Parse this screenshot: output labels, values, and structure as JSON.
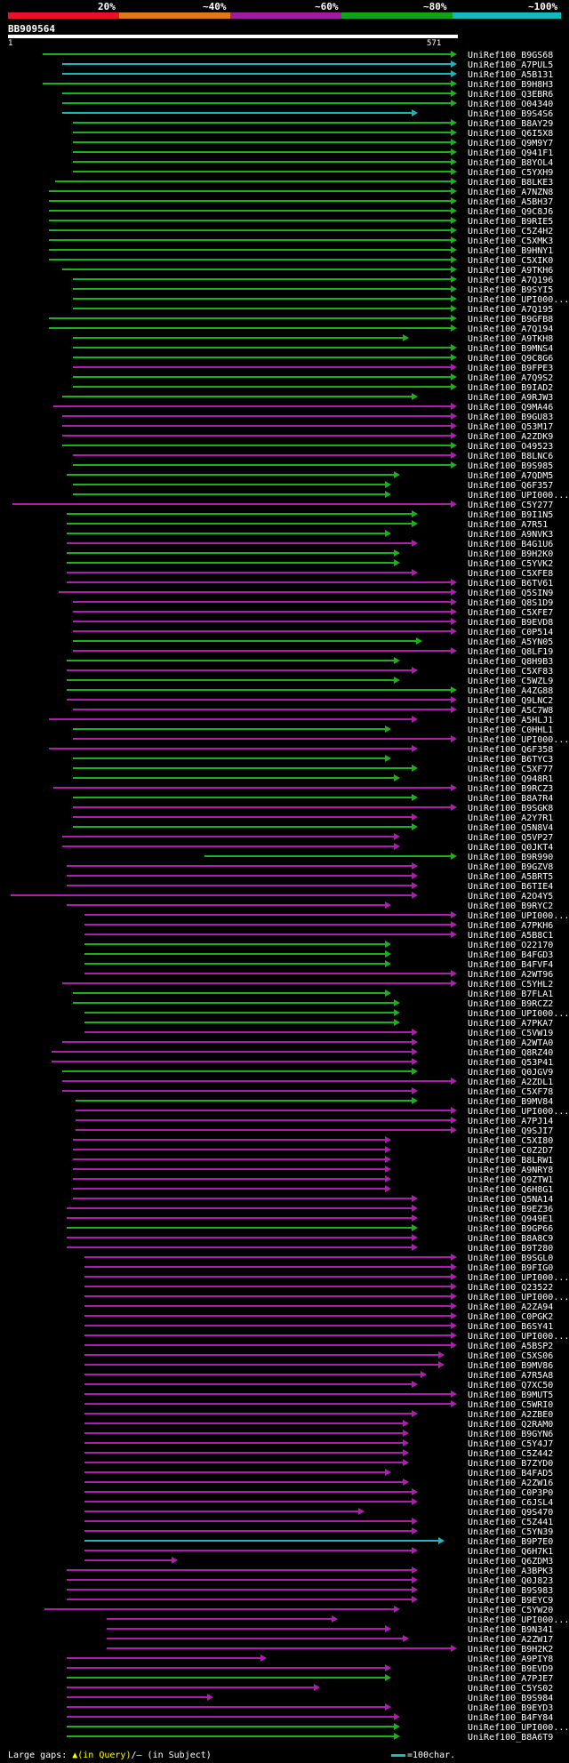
{
  "scale": {
    "labels": [
      "20%",
      "~40%",
      "~60%",
      "~80%",
      "~100%"
    ],
    "colors": [
      "#e8102a",
      "#e07818",
      "#a01c9e",
      "#16a016",
      "#16b8c0"
    ]
  },
  "query": {
    "id": "BB909564",
    "start": "1",
    "end": "571"
  },
  "hits": [
    {
      "id": "UniRef100_B9GS68",
      "c": "g"
    },
    {
      "id": "UniRef100_A7PUL5",
      "c": "c"
    },
    {
      "id": "UniRef100_A5B131",
      "c": "c"
    },
    {
      "id": "UniRef100_B9H8H3",
      "c": "g"
    },
    {
      "id": "UniRef100_Q3EBR6",
      "c": "g"
    },
    {
      "id": "UniRef100_O04340",
      "c": "g"
    },
    {
      "id": "UniRef100_B9S4S6",
      "c": "c"
    },
    {
      "id": "UniRef100_B8AY29",
      "c": "g"
    },
    {
      "id": "UniRef100_Q6I5X8",
      "c": "g"
    },
    {
      "id": "UniRef100_Q9M9Y7",
      "c": "g"
    },
    {
      "id": "UniRef100_Q941F1",
      "c": "g"
    },
    {
      "id": "UniRef100_B8YOL4",
      "c": "g"
    },
    {
      "id": "UniRef100_C5YXH9",
      "c": "g"
    },
    {
      "id": "UniRef100_B8LKE3",
      "c": "g"
    },
    {
      "id": "UniRef100_A7NZN8",
      "c": "g"
    },
    {
      "id": "UniRef100_A5BH37",
      "c": "g"
    },
    {
      "id": "UniRef100_Q9C8J6",
      "c": "g"
    },
    {
      "id": "UniRef100_B9RIE5",
      "c": "g"
    },
    {
      "id": "UniRef100_C5Z4H2",
      "c": "g"
    },
    {
      "id": "UniRef100_C5XMK3",
      "c": "g"
    },
    {
      "id": "UniRef100_B9HNY1",
      "c": "g"
    },
    {
      "id": "UniRef100_C5XIK0",
      "c": "g"
    },
    {
      "id": "UniRef100_A9TKH6",
      "c": "g"
    },
    {
      "id": "UniRef100_A7Q196",
      "c": "g"
    },
    {
      "id": "UniRef100_B9SYI5",
      "c": "g"
    },
    {
      "id": "UniRef100_UPI000...",
      "c": "g"
    },
    {
      "id": "UniRef100_A7Q195",
      "c": "g"
    },
    {
      "id": "UniRef100_B9GFB8",
      "c": "g"
    },
    {
      "id": "UniRef100_A7Q194",
      "c": "g"
    },
    {
      "id": "UniRef100_A9TKH8",
      "c": "g"
    },
    {
      "id": "UniRef100_B9MNS4",
      "c": "g"
    },
    {
      "id": "UniRef100_Q9C8G6",
      "c": "g"
    },
    {
      "id": "UniRef100_B9FPE3",
      "c": "m"
    },
    {
      "id": "UniRef100_A7Q9S2",
      "c": "g"
    },
    {
      "id": "UniRef100_B9IAD2",
      "c": "g"
    },
    {
      "id": "UniRef100_A9RJW3",
      "c": "g"
    },
    {
      "id": "UniRef100_Q9MA46",
      "c": "m"
    },
    {
      "id": "UniRef100_B9GU83",
      "c": "m"
    },
    {
      "id": "UniRef100_Q53M17",
      "c": "m"
    },
    {
      "id": "UniRef100_A2ZDK9",
      "c": "m"
    },
    {
      "id": "UniRef100_O49523",
      "c": "g"
    },
    {
      "id": "UniRef100_B8LNC6",
      "c": "m"
    },
    {
      "id": "UniRef100_B9S985",
      "c": "g"
    },
    {
      "id": "UniRef100_A7QDM5",
      "c": "g"
    },
    {
      "id": "UniRef100_Q6F357",
      "c": "g"
    },
    {
      "id": "UniRef100_UPI000...",
      "c": "g"
    },
    {
      "id": "UniRef100_C5Y277",
      "c": "m"
    },
    {
      "id": "UniRef100_B9I1N5",
      "c": "g"
    },
    {
      "id": "UniRef100_A7R51",
      "c": "g"
    },
    {
      "id": "UniRef100_A9NVK3",
      "c": "g"
    },
    {
      "id": "UniRef100_B4G1U6",
      "c": "m"
    },
    {
      "id": "UniRef100_B9H2K0",
      "c": "g"
    },
    {
      "id": "UniRef100_C5YVK2",
      "c": "g"
    },
    {
      "id": "UniRef100_C5XFE8",
      "c": "m"
    },
    {
      "id": "UniRef100_B6TV61",
      "c": "m"
    },
    {
      "id": "UniRef100_Q5SIN9",
      "c": "m"
    },
    {
      "id": "UniRef100_Q8S1D9",
      "c": "m"
    },
    {
      "id": "UniRef100_C5XFE7",
      "c": "m"
    },
    {
      "id": "UniRef100_B9EVD8",
      "c": "m"
    },
    {
      "id": "UniRef100_C0P514",
      "c": "m"
    },
    {
      "id": "UniRef100_A5YN05",
      "c": "g"
    },
    {
      "id": "UniRef100_Q8LF19",
      "c": "m"
    },
    {
      "id": "UniRef100_Q8H9B3",
      "c": "g"
    },
    {
      "id": "UniRef100_C5XF83",
      "c": "m"
    },
    {
      "id": "UniRef100_C5WZL9",
      "c": "g"
    },
    {
      "id": "UniRef100_A4ZG88",
      "c": "g"
    },
    {
      "id": "UniRef100_Q9LNC2",
      "c": "m"
    },
    {
      "id": "UniRef100_A5C7W8",
      "c": "m"
    },
    {
      "id": "UniRef100_A5HLJ1",
      "c": "m"
    },
    {
      "id": "UniRef100_C0HHL1",
      "c": "g"
    },
    {
      "id": "UniRef100_UPI000...",
      "c": "m"
    },
    {
      "id": "UniRef100_Q6F358",
      "c": "m"
    },
    {
      "id": "UniRef100_B6TYC3",
      "c": "g"
    },
    {
      "id": "UniRef100_C5XF77",
      "c": "g"
    },
    {
      "id": "UniRef100_Q948R1",
      "c": "g"
    },
    {
      "id": "UniRef100_B9RCZ3",
      "c": "m"
    },
    {
      "id": "UniRef100_B8A7R4",
      "c": "g"
    },
    {
      "id": "UniRef100_B9SGK8",
      "c": "m"
    },
    {
      "id": "UniRef100_A2Y7R1",
      "c": "m"
    },
    {
      "id": "UniRef100_Q5N8V4",
      "c": "g"
    },
    {
      "id": "UniRef100_Q5VP27",
      "c": "m"
    },
    {
      "id": "UniRef100_Q0JKT4",
      "c": "m"
    },
    {
      "id": "UniRef100_B9R990",
      "c": "g"
    },
    {
      "id": "UniRef100_B9GZV8",
      "c": "m"
    },
    {
      "id": "UniRef100_A5BRT5",
      "c": "m"
    },
    {
      "id": "UniRef100_B6TIE4",
      "c": "m"
    },
    {
      "id": "UniRef100_A2O4Y5",
      "c": "m"
    },
    {
      "id": "UniRef100_B9RYC2",
      "c": "m"
    },
    {
      "id": "UniRef100_UPI000...",
      "c": "m"
    },
    {
      "id": "UniRef100_A7PKH6",
      "c": "m"
    },
    {
      "id": "UniRef100_A5B8C1",
      "c": "m"
    },
    {
      "id": "UniRef100_O22170",
      "c": "g"
    },
    {
      "id": "UniRef100_B4FGD3",
      "c": "g"
    },
    {
      "id": "UniRef100_B4FVF4",
      "c": "g"
    },
    {
      "id": "UniRef100_A2WT96",
      "c": "m"
    },
    {
      "id": "UniRef100_C5YHL2",
      "c": "m"
    },
    {
      "id": "UniRef100_B7FLA1",
      "c": "g"
    },
    {
      "id": "UniRef100_B9RCZ2",
      "c": "g"
    },
    {
      "id": "UniRef100_UPI000...",
      "c": "g"
    },
    {
      "id": "UniRef100_A7PKA7",
      "c": "g"
    },
    {
      "id": "UniRef100_C5VW19",
      "c": "m"
    },
    {
      "id": "UniRef100_A2WTA0",
      "c": "m"
    },
    {
      "id": "UniRef100_Q8RZ40",
      "c": "m"
    },
    {
      "id": "UniRef100_Q53P41",
      "c": "m"
    },
    {
      "id": "UniRef100_Q0JGV9",
      "c": "g"
    },
    {
      "id": "UniRef100_A2ZDL1",
      "c": "m"
    },
    {
      "id": "UniRef100_C5XF78",
      "c": "m"
    },
    {
      "id": "UniRef100_B9MV84",
      "c": "g"
    },
    {
      "id": "UniRef100_UPI000...",
      "c": "m"
    },
    {
      "id": "UniRef100_A7PJ14",
      "c": "m"
    },
    {
      "id": "UniRef100_Q9SJI7",
      "c": "m"
    },
    {
      "id": "UniRef100_C5XI80",
      "c": "m"
    },
    {
      "id": "UniRef100_C0Z2D7",
      "c": "m"
    },
    {
      "id": "UniRef100_B8LRW1",
      "c": "m"
    },
    {
      "id": "UniRef100_A9NRY8",
      "c": "m"
    },
    {
      "id": "UniRef100_Q9ZTW1",
      "c": "m"
    },
    {
      "id": "UniRef100_Q6H8G1",
      "c": "m"
    },
    {
      "id": "UniRef100_Q5NA14",
      "c": "m"
    },
    {
      "id": "UniRef100_B9EZ36",
      "c": "m"
    },
    {
      "id": "UniRef100_Q949E1",
      "c": "m"
    },
    {
      "id": "UniRef100_B9GP66",
      "c": "g"
    },
    {
      "id": "UniRef100_B8A8C9",
      "c": "m"
    },
    {
      "id": "UniRef100_B9T280",
      "c": "m"
    },
    {
      "id": "UniRef100_B9SGL0",
      "c": "m"
    },
    {
      "id": "UniRef100_B9FIG0",
      "c": "m"
    },
    {
      "id": "UniRef100_UPI000...",
      "c": "m"
    },
    {
      "id": "UniRef100_Q23522",
      "c": "m"
    },
    {
      "id": "UniRef100_UPI000...",
      "c": "m"
    },
    {
      "id": "UniRef100_A2ZA94",
      "c": "m"
    },
    {
      "id": "UniRef100_C0PGK2",
      "c": "m"
    },
    {
      "id": "UniRef100_B6SY41",
      "c": "m"
    },
    {
      "id": "UniRef100_UPI000...",
      "c": "m"
    },
    {
      "id": "UniRef100_A5BSP2",
      "c": "m"
    },
    {
      "id": "UniRef100_C5XS06",
      "c": "m"
    },
    {
      "id": "UniRef100_B9MV86",
      "c": "m"
    },
    {
      "id": "UniRef100_A7R5A8",
      "c": "m"
    },
    {
      "id": "UniRef100_Q7XC50",
      "c": "m"
    },
    {
      "id": "UniRef100_B9MUT5",
      "c": "m"
    },
    {
      "id": "UniRef100_C5WRI0",
      "c": "m"
    },
    {
      "id": "UniRef100_A2ZBE0",
      "c": "m"
    },
    {
      "id": "UniRef100_Q2RAM0",
      "c": "m"
    },
    {
      "id": "UniRef100_B9GYN6",
      "c": "m"
    },
    {
      "id": "UniRef100_C5Y4J7",
      "c": "m"
    },
    {
      "id": "UniRef100_C5Z442",
      "c": "m"
    },
    {
      "id": "UniRef100_B7ZYD0",
      "c": "m"
    },
    {
      "id": "UniRef100_B4FAD5",
      "c": "m"
    },
    {
      "id": "UniRef100_A2ZW16",
      "c": "m"
    },
    {
      "id": "UniRef100_C0P3P0",
      "c": "m"
    },
    {
      "id": "UniRef100_C6JSL4",
      "c": "m"
    },
    {
      "id": "UniRef100_Q9S470",
      "c": "m"
    },
    {
      "id": "UniRef100_C5Z441",
      "c": "m"
    },
    {
      "id": "UniRef100_C5YN39",
      "c": "m"
    },
    {
      "id": "UniRef100_B9P7E0",
      "c": "c"
    },
    {
      "id": "UniRef100_Q6H7K1",
      "c": "m"
    },
    {
      "id": "UniRef100_Q6ZDM3",
      "c": "m"
    },
    {
      "id": "UniRef100_A3BPK3",
      "c": "m"
    },
    {
      "id": "UniRef100_Q0J823",
      "c": "m"
    },
    {
      "id": "UniRef100_B9S983",
      "c": "m"
    },
    {
      "id": "UniRef100_B9EYC9",
      "c": "m"
    },
    {
      "id": "UniRef100_C5YW20",
      "c": "m"
    },
    {
      "id": "UniRef100_UPI000...",
      "c": "m"
    },
    {
      "id": "UniRef100_B9N341",
      "c": "m"
    },
    {
      "id": "UniRef100_A2ZW17",
      "c": "m"
    },
    {
      "id": "UniRef100_B9H2K2",
      "c": "m"
    },
    {
      "id": "UniRef100_A9PIY8",
      "c": "m"
    },
    {
      "id": "UniRef100_B9EVD9",
      "c": "m"
    },
    {
      "id": "UniRef100_A7PJE7",
      "c": "g"
    },
    {
      "id": "UniRef100_C5YS02",
      "c": "m"
    },
    {
      "id": "UniRef100_B9S984",
      "c": "m"
    },
    {
      "id": "UniRef100_B9EYD3",
      "c": "m"
    },
    {
      "id": "UniRef100_B4FY84",
      "c": "m"
    },
    {
      "id": "UniRef100_UPI000...",
      "c": "g"
    },
    {
      "id": "UniRef100_B8A6T9",
      "c": "g"
    }
  ],
  "legend": {
    "prefix": "Large gaps: ",
    "query_part": "▲(in Query)",
    "sep": "/",
    "subject_part": "– (in Subject)",
    "scale_text": "=100char."
  },
  "colors": {
    "g": "#19b319",
    "m": "#b01cb0",
    "c": "#16b8c0",
    "label": "#ffffff",
    "background": "#000000"
  }
}
